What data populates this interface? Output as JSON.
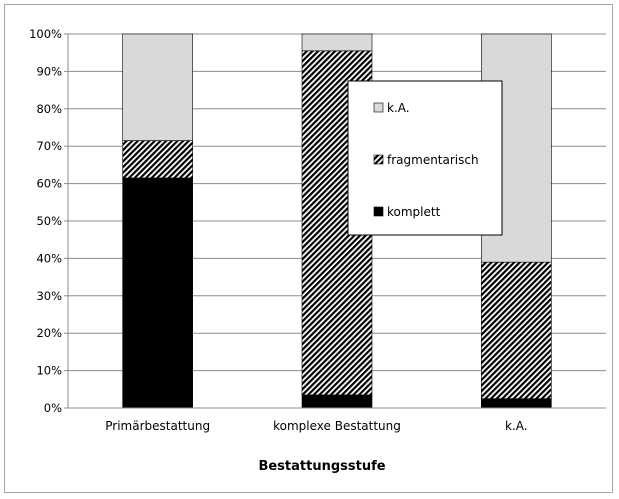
{
  "chart_data": {
    "type": "bar",
    "stacked": true,
    "percent": true,
    "categories": [
      "Primärbestattung",
      "komplexe Bestattung",
      "k.A."
    ],
    "series": [
      {
        "name": "komplett",
        "values": [
          61.5,
          3.5,
          2.5
        ],
        "color": "#000000",
        "fill": "solid"
      },
      {
        "name": "fragmentarisch",
        "values": [
          10.0,
          92.0,
          36.5
        ],
        "color": "#000000",
        "fill": "hatched"
      },
      {
        "name": "k.A.",
        "values": [
          28.5,
          4.5,
          61.0
        ],
        "color": "#d9d9d9",
        "fill": "solid"
      }
    ],
    "title": "",
    "xlabel": "Bestattungsstufe",
    "ylabel": "",
    "ylim": [
      0,
      100
    ],
    "yticks": [
      "0%",
      "10%",
      "20%",
      "30%",
      "40%",
      "50%",
      "60%",
      "70%",
      "80%",
      "90%",
      "100%"
    ],
    "grid": true,
    "legend": "inside-right"
  }
}
